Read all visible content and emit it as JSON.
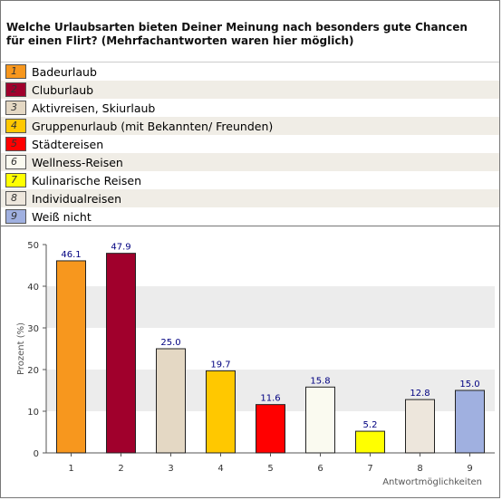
{
  "question": "Welche Urlaubsarten bieten Deiner Meinung nach besonders gute Chancen für einen Flirt? (Mehrfachantworten waren hier möglich)",
  "legend": [
    {
      "num": "1",
      "label": "Badeurlaub",
      "color": "#f7971e"
    },
    {
      "num": "2",
      "label": "Cluburlaub",
      "color": "#a0002c"
    },
    {
      "num": "3",
      "label": "Aktivreisen, Skiurlaub",
      "color": "#e4d8c4"
    },
    {
      "num": "4",
      "label": "Gruppenurlaub (mit Bekannten/ Freunden)",
      "color": "#ffc800"
    },
    {
      "num": "5",
      "label": "Städtereisen",
      "color": "#ff0000"
    },
    {
      "num": "6",
      "label": "Wellness-Reisen",
      "color": "#fafaf0"
    },
    {
      "num": "7",
      "label": "Kulinarische Reisen",
      "color": "#ffff00"
    },
    {
      "num": "8",
      "label": "Individualreisen",
      "color": "#ede6dc"
    },
    {
      "num": "9",
      "label": "Weiß nicht",
      "color": "#a0b0e0"
    }
  ],
  "chart_data": {
    "type": "bar",
    "categories": [
      "1",
      "2",
      "3",
      "4",
      "5",
      "6",
      "7",
      "8",
      "9"
    ],
    "values": [
      46.1,
      47.9,
      25.0,
      19.7,
      11.6,
      15.8,
      5.2,
      12.8,
      15.0
    ],
    "value_labels": [
      "46.1",
      "47.9",
      "25.0",
      "19.7",
      "11.6",
      "15.8",
      "5.2",
      "12.8",
      "15.0"
    ],
    "colors": [
      "#f7971e",
      "#a0002c",
      "#e4d8c4",
      "#ffc800",
      "#ff0000",
      "#fafaf0",
      "#ffff00",
      "#ede6dc",
      "#a0b0e0"
    ],
    "xlabel": "Antwortmöglichkeiten",
    "ylabel": "Prozent (%)",
    "ylim": [
      0,
      50
    ],
    "yticks": [
      "0",
      "10",
      "20",
      "30",
      "40",
      "50"
    ],
    "grid": "alternating horizontal bands",
    "band_color": "#ececec",
    "label_color": "#000080"
  }
}
